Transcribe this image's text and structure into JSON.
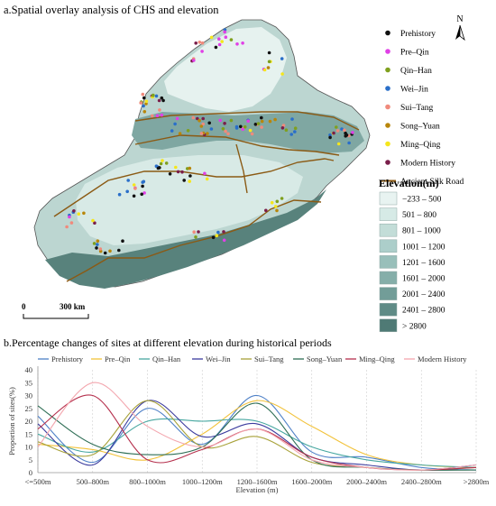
{
  "panel_a": {
    "title": "a.Spatial overlay analysis of CHS and elevation",
    "north_label": "N",
    "scale_zero": "0",
    "scale_text": "300 km",
    "site_legend": [
      {
        "label": "Prehistory",
        "color": "#111111"
      },
      {
        "label": "Pre–Qin",
        "color": "#e040e6"
      },
      {
        "label": "Qin–Han",
        "color": "#7fa01e"
      },
      {
        "label": "Wei–Jin",
        "color": "#2a6fc9"
      },
      {
        "label": "Sui–Tang",
        "color": "#f08a7c"
      },
      {
        "label": "Song–Yuan",
        "color": "#b8860b"
      },
      {
        "label": "Ming–Qing",
        "color": "#f5e61c"
      },
      {
        "label": "Modern History",
        "color": "#7a1e4a"
      }
    ],
    "road_legend": {
      "label": "Ancient Silk Road",
      "color": "#8b5a14"
    },
    "elevation_title": "Elevation(m)",
    "elevation_legend": [
      {
        "label": "−233 – 500",
        "color": "#e8f3f1"
      },
      {
        "label": "501 – 800",
        "color": "#d6eae6"
      },
      {
        "label": "801 – 1000",
        "color": "#c3ddd8"
      },
      {
        "label": "1001 – 1200",
        "color": "#acceca"
      },
      {
        "label": "1201 – 1600",
        "color": "#98bfba"
      },
      {
        "label": "1601 – 2000",
        "color": "#85aea9"
      },
      {
        "label": "2001 – 2400",
        "color": "#729d98"
      },
      {
        "label": "2401 – 2800",
        "color": "#5f8b86"
      },
      {
        "label": "> 2800",
        "color": "#4f7a75"
      }
    ]
  },
  "panel_b": {
    "title": "b.Percentage changes of sites at different elevation during historical periods"
  },
  "chart_data": {
    "type": "line",
    "title": "b.Percentage changes of sites at different elevation during historical periods",
    "xlabel": "Elevation (m)",
    "ylabel": "Proportion of sites(%)",
    "categories": [
      "<=500m",
      "500–800m",
      "800–1000m",
      "1000–1200m",
      "1200–1600m",
      "1600–2000m",
      "2000–2400m",
      "2400–2800m",
      ">2800m"
    ],
    "yticks": [
      0,
      5,
      10,
      15,
      20,
      25,
      30,
      35,
      40
    ],
    "ylim": [
      0,
      40
    ],
    "legend_position": "top",
    "grid": "vertical dashed at categories",
    "series": [
      {
        "name": "Prehistory",
        "color": "#4f81c7",
        "values": [
          22,
          4,
          25,
          11,
          30,
          8,
          6,
          2,
          1
        ]
      },
      {
        "name": "Pre–Qin",
        "color": "#f2c23a",
        "values": [
          11,
          9,
          5,
          15,
          28,
          18,
          7,
          3,
          2
        ]
      },
      {
        "name": "Qin–Han",
        "color": "#47a7a0",
        "values": [
          15,
          8,
          20,
          20,
          20,
          10,
          5,
          3,
          2
        ]
      },
      {
        "name": "Wei–Jin",
        "color": "#3c3c9e",
        "values": [
          19,
          3,
          28,
          14,
          19,
          6,
          3,
          1,
          3
        ]
      },
      {
        "name": "Sui–Tang",
        "color": "#a8a23a",
        "values": [
          12,
          7,
          28,
          10,
          14,
          4,
          2,
          1,
          2
        ]
      },
      {
        "name": "Song–Yuan",
        "color": "#2e6e55",
        "values": [
          26,
          11,
          7,
          10,
          27,
          5,
          2,
          1,
          1
        ]
      },
      {
        "name": "Ming–Qing",
        "color": "#b5304d",
        "values": [
          17,
          30,
          5,
          9,
          17,
          6,
          2,
          1,
          2
        ]
      },
      {
        "name": "Modern History",
        "color": "#f3a6ae",
        "values": [
          10,
          35,
          18,
          10,
          17,
          5,
          2,
          1,
          3
        ]
      }
    ]
  }
}
